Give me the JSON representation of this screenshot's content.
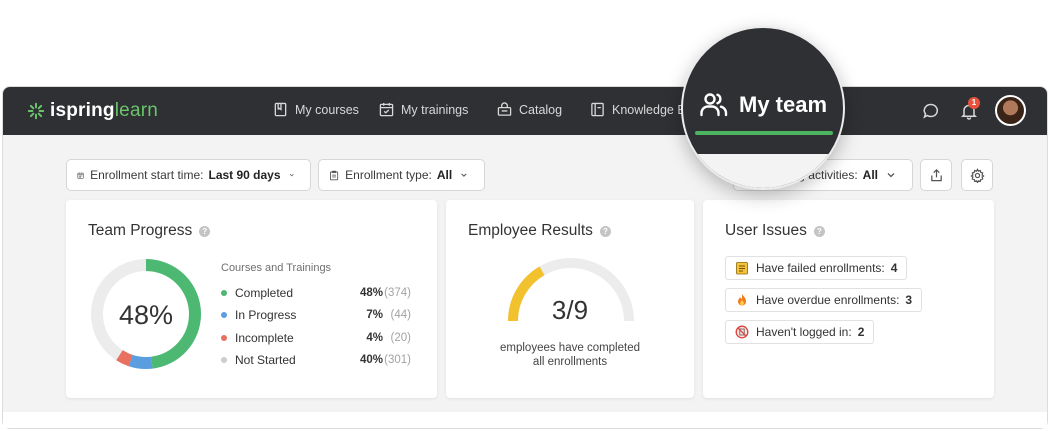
{
  "brand": {
    "name_part1": "ispring",
    "name_part2": "learn",
    "accent": "#6cc36b"
  },
  "nav": {
    "items": [
      {
        "label": "My courses",
        "icon": "book-icon"
      },
      {
        "label": "My trainings",
        "icon": "calendar-check-icon"
      },
      {
        "label": "Catalog",
        "icon": "basket-icon"
      },
      {
        "label": "Knowledge Base",
        "icon": "knowledge-base-icon"
      }
    ],
    "active": {
      "label": "My team",
      "icon": "team-icon"
    },
    "notifications_count": "1"
  },
  "filters": {
    "enrollment_start": {
      "label": "Enrollment start time:",
      "value": "Last 90 days"
    },
    "enrollment_type": {
      "label": "Enrollment type:",
      "value": "All"
    },
    "activities": {
      "label": "g activities:",
      "value": "All"
    }
  },
  "team_progress": {
    "title": "Team Progress",
    "center_value": "48%",
    "legend_title": "Courses and Trainings",
    "items": [
      {
        "label": "Completed",
        "pct": "48%",
        "count": "(374)",
        "color": "#4cb872",
        "fraction": 0.48
      },
      {
        "label": "In Progress",
        "pct": "7%",
        "count": "(44)",
        "color": "#5a9ee0",
        "fraction": 0.07
      },
      {
        "label": "Incomplete",
        "pct": "4%",
        "count": "(20)",
        "color": "#e8705e",
        "fraction": 0.04
      },
      {
        "label": "Not Started",
        "pct": "40%",
        "count": "(301)",
        "color": "#cccccc",
        "fraction": 0.4
      }
    ]
  },
  "employee_results": {
    "title": "Employee Results",
    "value": "3/9",
    "fraction": 0.3333,
    "gauge_color": "#f2c12e",
    "caption_line1": "employees have completed",
    "caption_line2": "all enrollments"
  },
  "user_issues": {
    "title": "User Issues",
    "items": [
      {
        "label": "Have failed enrollments:",
        "count": "4",
        "icon": "clipboard-warning-icon"
      },
      {
        "label": "Have overdue enrollments:",
        "count": "3",
        "icon": "fire-icon"
      },
      {
        "label": "Haven't logged in:",
        "count": "2",
        "icon": "no-login-icon"
      }
    ]
  }
}
